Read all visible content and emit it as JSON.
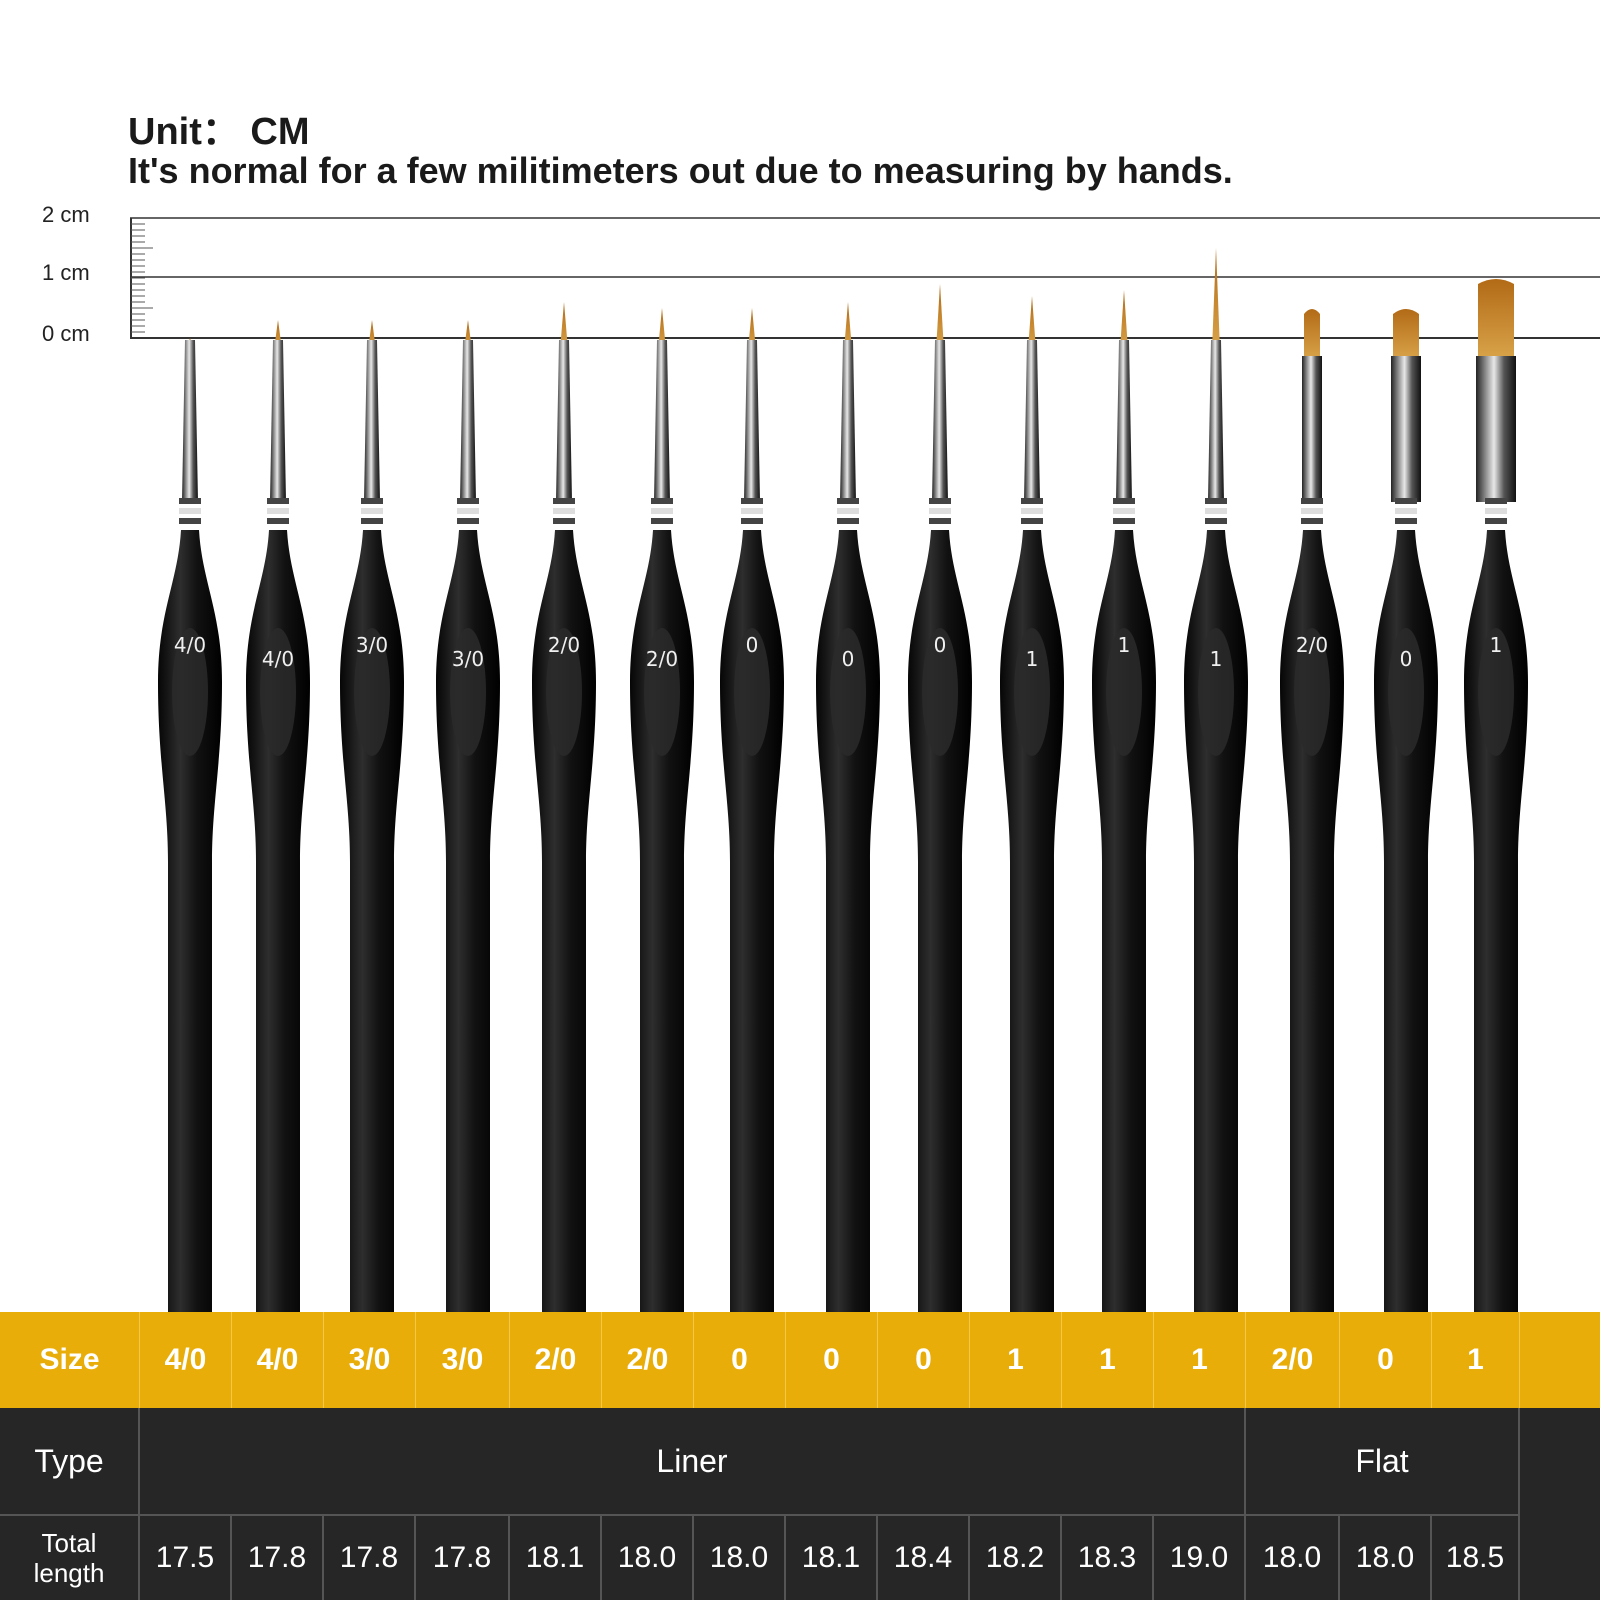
{
  "header": {
    "unit": "Unit：  CM",
    "note": "It's normal for a few militimeters out due to measuring by hands."
  },
  "ruler": {
    "labels": [
      "2 cm",
      "1 cm",
      "0 cm"
    ]
  },
  "colors": {
    "size_row": "#e8ad08",
    "table_dark": "#262626",
    "bristle": "#c88a2c",
    "handle": "#151515"
  },
  "table": {
    "size_label": "Size",
    "type_label": "Type",
    "length_label_line1": "Total",
    "length_label_line2": "length",
    "types": [
      {
        "name": "Liner",
        "span": 12
      },
      {
        "name": "Flat",
        "span": 3
      }
    ]
  },
  "brushes": [
    {
      "size": "4/0",
      "handle_mark": "4/0",
      "type": "Liner",
      "length": "17.5"
    },
    {
      "size": "4/0",
      "handle_mark": "4/0",
      "type": "Liner",
      "length": "17.8"
    },
    {
      "size": "3/0",
      "handle_mark": "3/0",
      "type": "Liner",
      "length": "17.8"
    },
    {
      "size": "3/0",
      "handle_mark": "3/0",
      "type": "Liner",
      "length": "17.8"
    },
    {
      "size": "2/0",
      "handle_mark": "2/0",
      "type": "Liner",
      "length": "18.1"
    },
    {
      "size": "2/0",
      "handle_mark": "2/0",
      "type": "Liner",
      "length": "18.0"
    },
    {
      "size": "0",
      "handle_mark": "0",
      "type": "Liner",
      "length": "18.0"
    },
    {
      "size": "0",
      "handle_mark": "0",
      "type": "Liner",
      "length": "18.1"
    },
    {
      "size": "0",
      "handle_mark": "0",
      "type": "Liner",
      "length": "18.4"
    },
    {
      "size": "1",
      "handle_mark": "1",
      "type": "Liner",
      "length": "18.2"
    },
    {
      "size": "1",
      "handle_mark": "1",
      "type": "Liner",
      "length": "18.3"
    },
    {
      "size": "1",
      "handle_mark": "1",
      "type": "Liner",
      "length": "19.0"
    },
    {
      "size": "2/0",
      "handle_mark": "2/0",
      "type": "Flat",
      "length": "18.0"
    },
    {
      "size": "0",
      "handle_mark": "0",
      "type": "Flat",
      "length": "18.0"
    },
    {
      "size": "1",
      "handle_mark": "1",
      "type": "Flat",
      "length": "18.5"
    }
  ]
}
